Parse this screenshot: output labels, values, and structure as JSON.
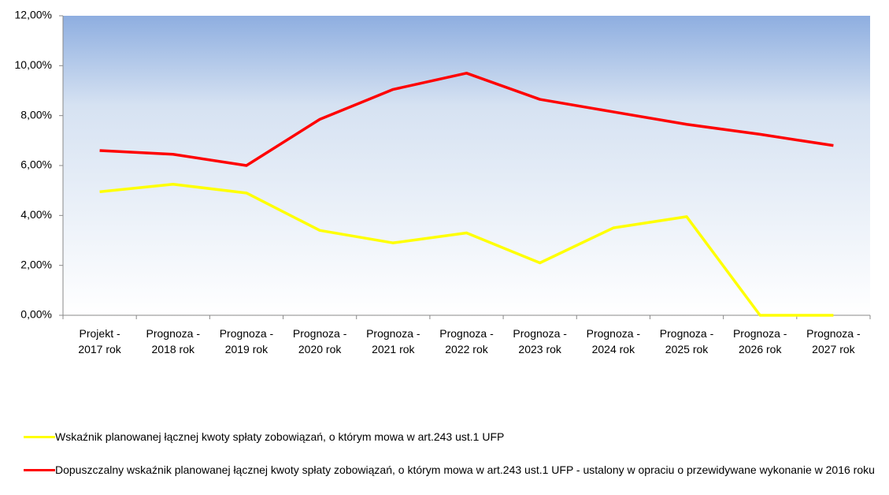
{
  "chart_data": {
    "type": "line",
    "categories": [
      "Projekt - 2017 rok",
      "Prognoza - 2018 rok",
      "Prognoza - 2019 rok",
      "Prognoza - 2020 rok",
      "Prognoza - 2021 rok",
      "Prognoza - 2022 rok",
      "Prognoza - 2023 rok",
      "Prognoza - 2024 rok",
      "Prognoza - 2025 rok",
      "Prognoza - 2026 rok",
      "Prognoza - 2027 rok"
    ],
    "series": [
      {
        "name": "Wskaźnik planowanej łącznej kwoty spłaty zobowiązań, o którym mowa w art.243 ust.1 UFP",
        "color": "#ffff00",
        "values": [
          4.95,
          5.25,
          4.9,
          3.4,
          2.9,
          3.3,
          2.1,
          3.5,
          3.95,
          0,
          0
        ]
      },
      {
        "name": "Dopuszczalny wskaźnik planowanej łącznej kwoty spłaty zobowiązań, o którym mowa w art.243 ust.1 UFP - ustalony w opraciu o przewidywane wykonanie w 2016 roku",
        "color": "#ff0000",
        "values": [
          6.6,
          6.45,
          6.0,
          7.85,
          9.05,
          9.7,
          8.65,
          8.15,
          7.65,
          7.25,
          6.8
        ]
      }
    ],
    "ylim": [
      0,
      12
    ],
    "yticks": [
      {
        "value": 0,
        "label": "0,00%"
      },
      {
        "value": 2,
        "label": "2,00%"
      },
      {
        "value": 4,
        "label": "4,00%"
      },
      {
        "value": 6,
        "label": "6,00%"
      },
      {
        "value": 8,
        "label": "8,00%"
      },
      {
        "value": 10,
        "label": "10,00%"
      },
      {
        "value": 12,
        "label": "12,00%"
      }
    ],
    "legend": "bottom"
  }
}
